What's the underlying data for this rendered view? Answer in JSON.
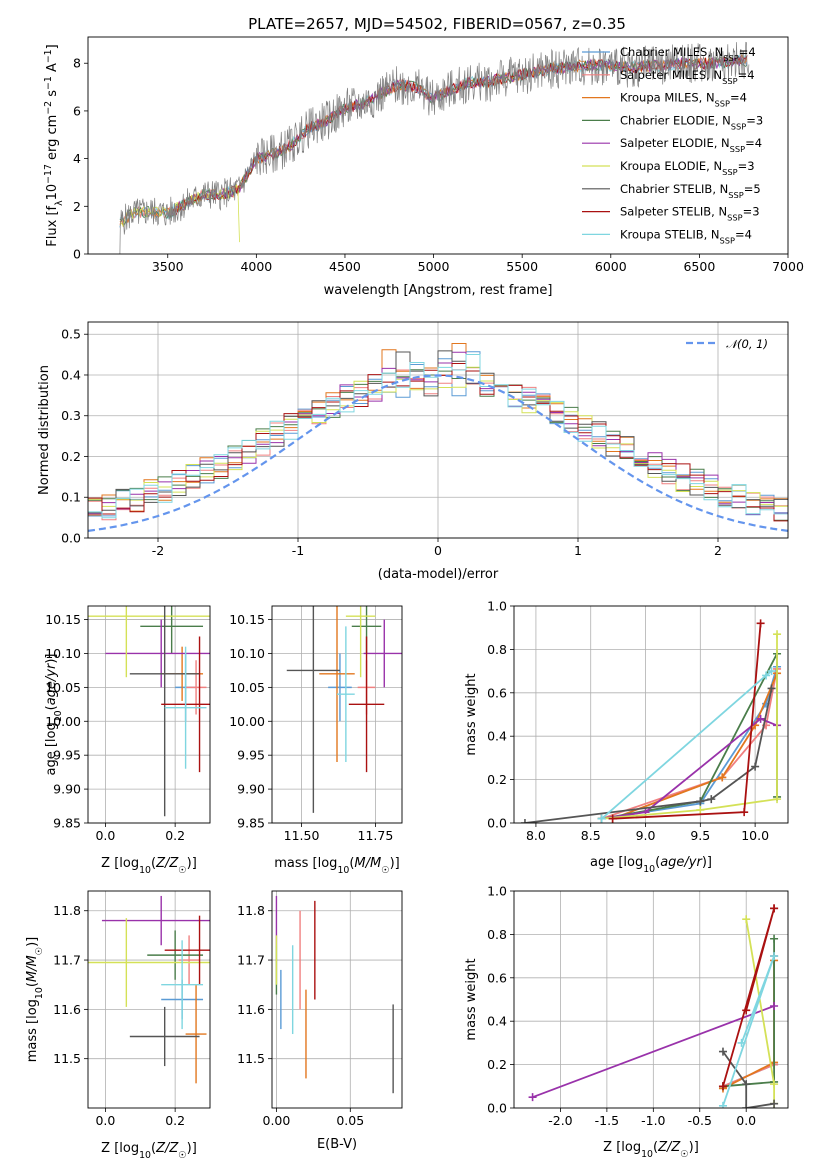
{
  "title": "PLATE=2657, MJD=54502, FIBERID=0567, z=0.35",
  "models": [
    {
      "label": "Chabrier MILES, N_SSP=4",
      "color": "#5b9bd5"
    },
    {
      "label": "Salpeter MILES, N_SSP=4",
      "color": "#f08080"
    },
    {
      "label": "Kroupa MILES, N_SSP=4",
      "color": "#e2771f"
    },
    {
      "label": "Chabrier ELODIE, N_SSP=3",
      "color": "#4a7d4a"
    },
    {
      "label": "Salpeter ELODIE, N_SSP=4",
      "color": "#9932aa"
    },
    {
      "label": "Kroupa ELODIE, N_SSP=3",
      "color": "#d4e157"
    },
    {
      "label": "Chabrier STELIB, N_SSP=5",
      "color": "#555555"
    },
    {
      "label": "Salpeter STELIB, N_SSP=3",
      "color": "#aa1111"
    },
    {
      "label": "Kroupa STELIB, N_SSP=4",
      "color": "#7fd6e0"
    }
  ],
  "chart_data": [
    {
      "type": "line",
      "panel": "spectrum",
      "title": "PLATE=2657, MJD=54502, FIBERID=0567, z=0.35",
      "xlabel": "wavelength [Angstrom, rest frame]",
      "ylabel": "Flux [f_λ 10^-17 erg cm^-2 s^-1 A^-1]",
      "xlim": [
        3050,
        7000
      ],
      "ylim": [
        0,
        9.1
      ],
      "xticks": [
        3500,
        4000,
        4500,
        5000,
        5500,
        6000,
        6500,
        7000
      ],
      "yticks": [
        0,
        2,
        4,
        6,
        8
      ],
      "data_flux": {
        "x": [
          3230,
          3300,
          3400,
          3500,
          3550,
          3600,
          3700,
          3800,
          3900,
          4000,
          4100,
          4200,
          4300,
          4400,
          4500,
          4600,
          4700,
          4800,
          4900,
          5000,
          5100,
          5200,
          5300,
          5400,
          5500,
          5600,
          5700,
          5800,
          5900,
          6000,
          6100,
          6200,
          6300,
          6400,
          6500,
          6600,
          6700,
          6770
        ],
        "y": [
          1.3,
          1.7,
          1.8,
          1.7,
          1.9,
          2.1,
          2.5,
          2.5,
          2.7,
          4.0,
          4.2,
          4.6,
          5.3,
          5.6,
          6.1,
          6.3,
          6.7,
          7.1,
          7.0,
          6.5,
          6.9,
          7.2,
          7.2,
          7.4,
          7.5,
          7.7,
          7.8,
          7.9,
          7.9,
          7.9,
          7.8,
          7.9,
          7.9,
          8.0,
          8.0,
          8.0,
          8.1,
          8.1
        ]
      }
    },
    {
      "type": "line",
      "panel": "residual-histogram",
      "xlabel": "(data-model)/error",
      "ylabel": "Normed distribution",
      "xlim": [
        -2.5,
        2.5
      ],
      "ylim": [
        0,
        0.53
      ],
      "xticks": [
        -2,
        -1,
        0,
        1,
        2
      ],
      "yticks": [
        0,
        0.1,
        0.2,
        0.3,
        0.4,
        0.5
      ],
      "series": [
        {
          "name": "N(0,1)",
          "style": "dashed",
          "color": "#6495ed"
        }
      ]
    },
    {
      "type": "scatter",
      "panel": "age-vs-Z",
      "xlabel": "Z [log10(Z/Z☉)]",
      "ylabel": "age [log10(age/yr)]",
      "xlim": [
        -0.05,
        0.3
      ],
      "ylim": [
        9.85,
        10.17
      ],
      "xticks": [
        0.0,
        0.2
      ],
      "yticks": [
        9.85,
        9.9,
        9.95,
        10.0,
        10.05,
        10.1,
        10.15
      ],
      "points": [
        {
          "m": 0,
          "x": 0.23,
          "y": 10.05,
          "xe": 0.03,
          "ye": 0.05
        },
        {
          "m": 1,
          "x": 0.26,
          "y": 10.05,
          "xe": 0.03,
          "ye": 0.04
        },
        {
          "m": 2,
          "x": 0.22,
          "y": 10.07,
          "xe": 0.06,
          "ye": 0.04
        },
        {
          "m": 3,
          "x": 0.19,
          "y": 10.14,
          "xe": 0.09,
          "ye": 0.04
        },
        {
          "m": 4,
          "x": 0.16,
          "y": 10.1,
          "xe": 0.16,
          "ye": 0.05
        },
        {
          "m": 5,
          "x": 0.06,
          "y": 10.155,
          "xe": 0.24,
          "ye": 0.09
        },
        {
          "m": 6,
          "x": 0.17,
          "y": 10.07,
          "xe": 0.1,
          "ye": 0.21
        },
        {
          "m": 7,
          "x": 0.27,
          "y": 10.025,
          "xe": 0.11,
          "ye": 0.1
        },
        {
          "m": 8,
          "x": 0.23,
          "y": 10.02,
          "xe": 0.06,
          "ye": 0.09
        }
      ]
    },
    {
      "type": "scatter",
      "panel": "age-vs-mass",
      "xlabel": "mass [log10(M/M☉)]",
      "xlim": [
        11.4,
        11.84
      ],
      "ylim": [
        9.85,
        10.17
      ],
      "xticks": [
        11.5,
        11.75
      ],
      "yticks": [
        9.85,
        9.9,
        9.95,
        10.0,
        10.05,
        10.1,
        10.15
      ],
      "points": [
        {
          "m": 0,
          "x": 11.63,
          "y": 10.05,
          "xe": 0.04,
          "ye": 0.05
        },
        {
          "m": 1,
          "x": 11.72,
          "y": 10.05,
          "xe": 0.03,
          "ye": 0.04
        },
        {
          "m": 2,
          "x": 11.62,
          "y": 10.07,
          "xe": 0.06,
          "ye": 0.13
        },
        {
          "m": 3,
          "x": 11.72,
          "y": 10.14,
          "xe": 0.05,
          "ye": 0.04
        },
        {
          "m": 4,
          "x": 11.78,
          "y": 10.1,
          "xe": 0.07,
          "ye": 0.05
        },
        {
          "m": 5,
          "x": 11.7,
          "y": 10.155,
          "xe": 0.05,
          "ye": 0.09
        },
        {
          "m": 6,
          "x": 11.54,
          "y": 10.075,
          "xe": 0.09,
          "ye": 0.21
        },
        {
          "m": 7,
          "x": 11.72,
          "y": 10.025,
          "xe": 0.06,
          "ye": 0.1
        },
        {
          "m": 8,
          "x": 11.65,
          "y": 10.04,
          "xe": 0.03,
          "ye": 0.1
        }
      ]
    },
    {
      "type": "line",
      "panel": "mass-weight-vs-age",
      "xlabel": "age [log10(age/yr)]",
      "ylabel": "mass weight",
      "xlim": [
        7.8,
        10.3
      ],
      "ylim": [
        0,
        1
      ],
      "xticks": [
        8.0,
        8.5,
        9.0,
        9.5,
        10.0
      ],
      "yticks": [
        0,
        0.2,
        0.4,
        0.6,
        0.8,
        1.0
      ],
      "series": [
        {
          "m": 0,
          "x": [
            8.6,
            9.5,
            10.1,
            10.2
          ],
          "y": [
            0.02,
            0.09,
            0.55,
            0.72
          ]
        },
        {
          "m": 1,
          "x": [
            8.6,
            9.7,
            10.1,
            10.2
          ],
          "y": [
            0.02,
            0.21,
            0.45,
            0.71
          ]
        },
        {
          "m": 2,
          "x": [
            8.7,
            9.7,
            10.0,
            10.2
          ],
          "y": [
            0.02,
            0.21,
            0.45,
            0.69
          ]
        },
        {
          "m": 3,
          "x": [
            8.6,
            9.5,
            10.2,
            10.2
          ],
          "y": [
            0.02,
            0.1,
            0.78,
            0.12
          ]
        },
        {
          "m": 4,
          "x": [
            8.6,
            9.0,
            10.05,
            10.2
          ],
          "y": [
            0.02,
            0.05,
            0.48,
            0.45
          ]
        },
        {
          "m": 5,
          "x": [
            8.6,
            9.5,
            10.2,
            10.2
          ],
          "y": [
            0.02,
            0.06,
            0.11,
            0.87
          ]
        },
        {
          "m": 6,
          "x": [
            7.9,
            9.5,
            9.6,
            10.0,
            10.15
          ],
          "y": [
            0.0,
            0.1,
            0.11,
            0.26,
            0.62
          ]
        },
        {
          "m": 7,
          "x": [
            8.7,
            9.9,
            10.05
          ],
          "y": [
            0.02,
            0.05,
            0.92
          ]
        },
        {
          "m": 8,
          "x": [
            8.6,
            10.1,
            10.15
          ],
          "y": [
            0.02,
            0.68,
            0.7
          ]
        }
      ]
    },
    {
      "type": "scatter",
      "panel": "mass-vs-Z",
      "xlabel": "Z [log10(Z/Z☉)]",
      "ylabel": "mass [log10(M/M☉)]",
      "xlim": [
        -0.05,
        0.3
      ],
      "ylim": [
        11.4,
        11.84
      ],
      "xticks": [
        0.0,
        0.2
      ],
      "yticks": [
        11.5,
        11.6,
        11.7,
        11.8
      ],
      "points": [
        {
          "m": 0,
          "x": 0.22,
          "y": 11.62,
          "xe": 0.06,
          "ye": 0.04
        },
        {
          "m": 1,
          "x": 0.24,
          "y": 11.7,
          "xe": 0.03,
          "ye": 0.05
        },
        {
          "m": 2,
          "x": 0.26,
          "y": 11.55,
          "xe": 0.03,
          "ye": 0.1
        },
        {
          "m": 3,
          "x": 0.2,
          "y": 11.71,
          "xe": 0.08,
          "ye": 0.05
        },
        {
          "m": 4,
          "x": 0.16,
          "y": 11.78,
          "xe": 0.17,
          "ye": 0.05
        },
        {
          "m": 5,
          "x": 0.06,
          "y": 11.695,
          "xe": 0.24,
          "ye": 0.09
        },
        {
          "m": 6,
          "x": 0.17,
          "y": 11.545,
          "xe": 0.1,
          "ye": 0.06
        },
        {
          "m": 7,
          "x": 0.27,
          "y": 11.72,
          "xe": 0.1,
          "ye": 0.07
        },
        {
          "m": 8,
          "x": 0.22,
          "y": 11.65,
          "xe": 0.06,
          "ye": 0.09
        }
      ]
    },
    {
      "type": "scatter",
      "panel": "mass-vs-EBV",
      "xlabel": "E(B-V)",
      "xlim": [
        -0.003,
        0.085
      ],
      "ylim": [
        11.4,
        11.84
      ],
      "xticks": [
        0.0,
        0.05
      ],
      "yticks": [
        11.5,
        11.6,
        11.7,
        11.8
      ],
      "points": [
        {
          "m": 0,
          "x": 0.003,
          "y": 11.62,
          "ye": 0.06
        },
        {
          "m": 1,
          "x": 0.016,
          "y": 11.7,
          "ye": 0.1
        },
        {
          "m": 2,
          "x": 0.02,
          "y": 11.55,
          "ye": 0.09
        },
        {
          "m": 3,
          "x": 0.0,
          "y": 11.68,
          "ye": 0.05
        },
        {
          "m": 4,
          "x": 0.0,
          "y": 11.78,
          "ye": 0.05
        },
        {
          "m": 5,
          "x": 0.0,
          "y": 11.7,
          "ye": 0.05
        },
        {
          "m": 6,
          "x": 0.079,
          "y": 11.52,
          "ye": 0.09
        },
        {
          "m": 7,
          "x": 0.026,
          "y": 11.72,
          "ye": 0.1
        },
        {
          "m": 8,
          "x": 0.011,
          "y": 11.64,
          "ye": 0.09
        }
      ]
    },
    {
      "type": "line",
      "panel": "mass-weight-vs-Z",
      "xlabel": "Z [log10(Z/Z☉)]",
      "ylabel": "mass weight",
      "xlim": [
        -2.5,
        0.45
      ],
      "ylim": [
        0,
        1
      ],
      "xticks": [
        -2.0,
        -1.5,
        -1.0,
        -0.5,
        0.0
      ],
      "yticks": [
        0,
        0.2,
        0.4,
        0.6,
        0.8,
        1.0
      ],
      "series": [
        {
          "m": 0,
          "x": [
            -0.25,
            0.3,
            0.3
          ],
          "y": [
            0.1,
            0.2,
            0.7
          ]
        },
        {
          "m": 1,
          "x": [
            -0.25,
            0.3,
            0.3
          ],
          "y": [
            0.1,
            0.2,
            0.7
          ]
        },
        {
          "m": 2,
          "x": [
            -0.25,
            0.3,
            0.3
          ],
          "y": [
            0.09,
            0.21,
            0.68
          ]
        },
        {
          "m": 3,
          "x": [
            -0.25,
            0.3,
            0.3
          ],
          "y": [
            0.1,
            0.12,
            0.78
          ]
        },
        {
          "m": 4,
          "x": [
            -2.3,
            0.3
          ],
          "y": [
            0.05,
            0.47
          ]
        },
        {
          "m": 5,
          "x": [
            0.0,
            0.3,
            0.3
          ],
          "y": [
            0.87,
            0.11,
            0.02
          ]
        },
        {
          "m": 6,
          "x": [
            -0.25,
            0.0,
            0.0,
            0.3
          ],
          "y": [
            0.26,
            0.11,
            0.0,
            0.02
          ]
        },
        {
          "m": 7,
          "x": [
            -0.25,
            0.3,
            0.0,
            0.3
          ],
          "y": [
            0.1,
            0.92,
            0.45,
            0.92
          ]
        },
        {
          "m": 8,
          "x": [
            -0.25,
            0.3,
            -0.05
          ],
          "y": [
            0.01,
            0.7,
            0.3
          ]
        }
      ]
    }
  ]
}
